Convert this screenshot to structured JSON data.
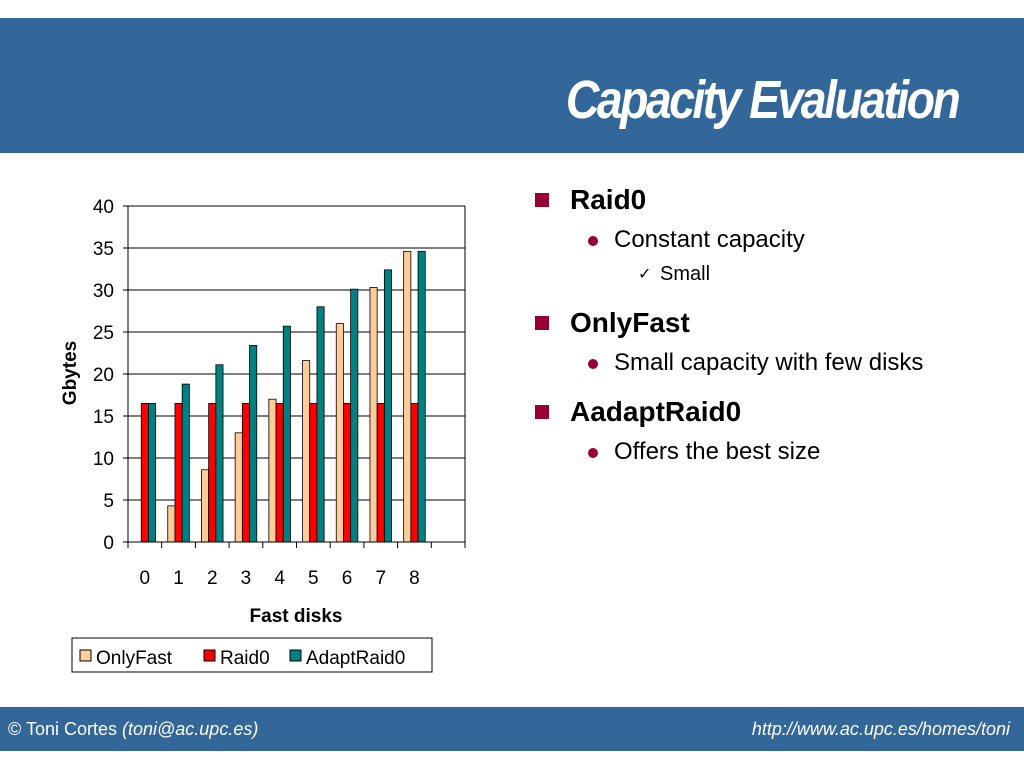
{
  "slide": {
    "title": "Capacity Evaluation",
    "colors": {
      "header": "#336699",
      "bullet": "#990033"
    }
  },
  "bullets": {
    "b1": {
      "label": "Raid0",
      "sub": "Constant capacity",
      "subsub": "Small"
    },
    "b2": {
      "label": "OnlyFast",
      "sub": "Small capacity with few disks"
    },
    "b3": {
      "label": "AadaptRaid0",
      "sub": "Offers the best size"
    }
  },
  "footer": {
    "author": "© Toni Cortes",
    "email": "(toni@ac.upc.es)",
    "url": "http://www.ac.upc.es/homes/toni"
  },
  "chart_data": {
    "type": "bar",
    "categories": [
      "0",
      "1",
      "2",
      "3",
      "4",
      "5",
      "6",
      "7",
      "8"
    ],
    "xlabel": "Fast disks",
    "ylabel": "Gbytes",
    "ylim": [
      0,
      40
    ],
    "yticks": [
      0,
      5,
      10,
      15,
      20,
      25,
      30,
      35,
      40
    ],
    "grid": true,
    "legend": "bottom",
    "series": [
      {
        "name": "OnlyFast",
        "color": "#FFCC99",
        "values": [
          0,
          4.3,
          8.6,
          13,
          17,
          21.6,
          26,
          30.3,
          34.6
        ]
      },
      {
        "name": "Raid0",
        "color": "#FF0000",
        "values": [
          16.5,
          16.5,
          16.5,
          16.5,
          16.5,
          16.5,
          16.5,
          16.5,
          16.5
        ]
      },
      {
        "name": "AdaptRaid0",
        "color": "#008080",
        "values": [
          16.5,
          18.8,
          21.1,
          23.4,
          25.7,
          28,
          30.1,
          32.4,
          34.6
        ]
      }
    ]
  }
}
